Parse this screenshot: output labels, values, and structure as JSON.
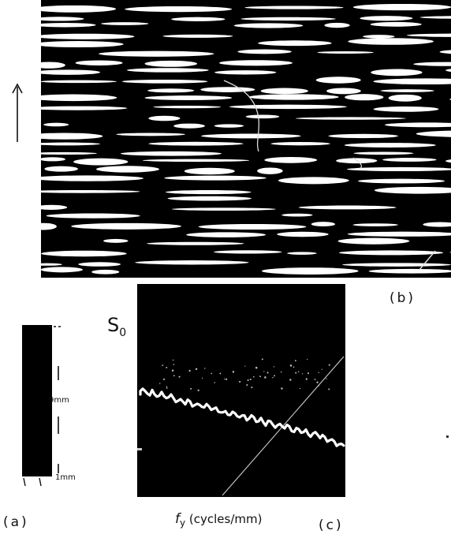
{
  "figure": {
    "panel_a_label": "(a)",
    "panel_b_label": "(b)",
    "panel_c_label": "(c)",
    "scale_upper": "9mm",
    "scale_lower": "1mm",
    "y_axis_label_base": "S",
    "y_axis_label_sub": "0",
    "x_axis_label_base": "f",
    "x_axis_label_sub": "y",
    "x_axis_units": "(cycles/mm)",
    "direction_arrow": "up-arrow-icon",
    "colors": {
      "image_background": "#000000",
      "image_foreground": "#ffffff",
      "page_background": "#ffffff"
    }
  }
}
